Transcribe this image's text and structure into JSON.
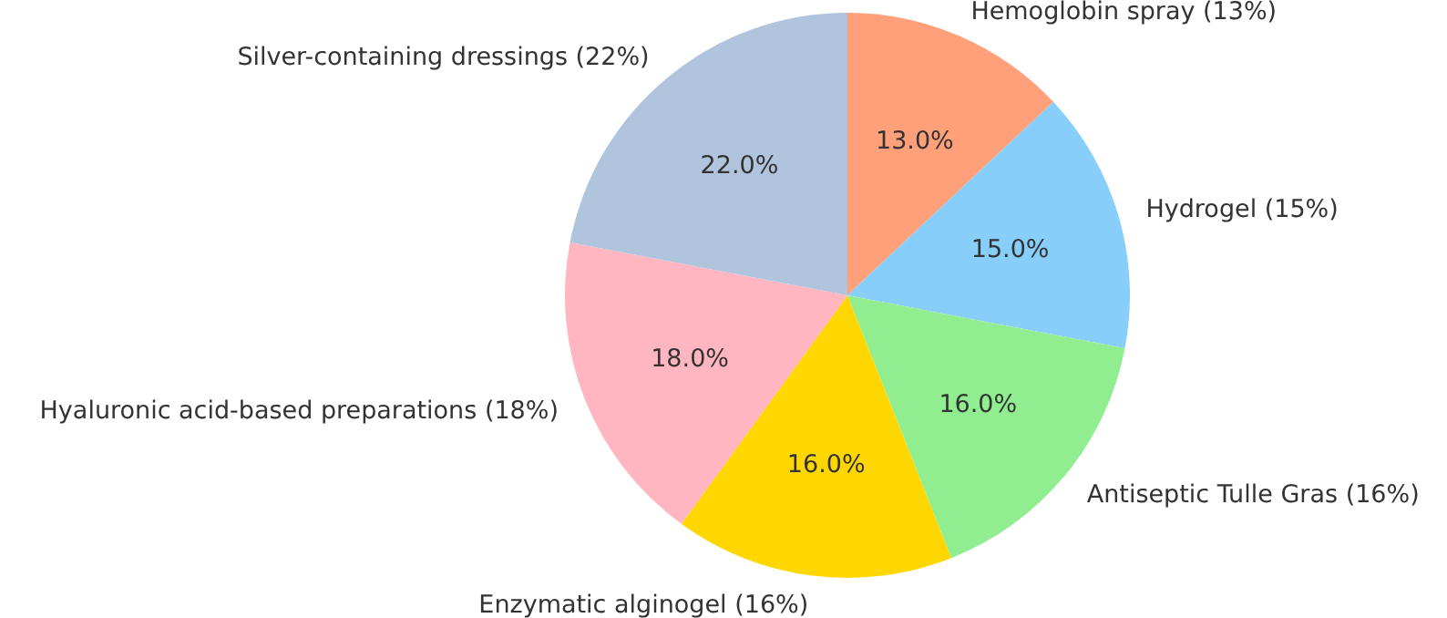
{
  "chart_data": {
    "type": "pie",
    "categories": [
      "Hemoglobin spray (13%)",
      "Hydrogel (15%)",
      "Antiseptic Tulle Gras (16%)",
      "Enzymatic alginogel (16%)",
      "Hyaluronic acid-based preparations (18%)",
      "Silver-containing dressings (22%)"
    ],
    "values": [
      13,
      15,
      16,
      16,
      18,
      22
    ],
    "colors": [
      "#ffa07a",
      "#87cefa",
      "#90ee90",
      "#ffd700",
      "#ffb6c1",
      "#b0c4de"
    ],
    "value_labels": [
      "13.0%",
      "15.0%",
      "16.0%",
      "16.0%",
      "18.0%",
      "22.0%"
    ]
  }
}
